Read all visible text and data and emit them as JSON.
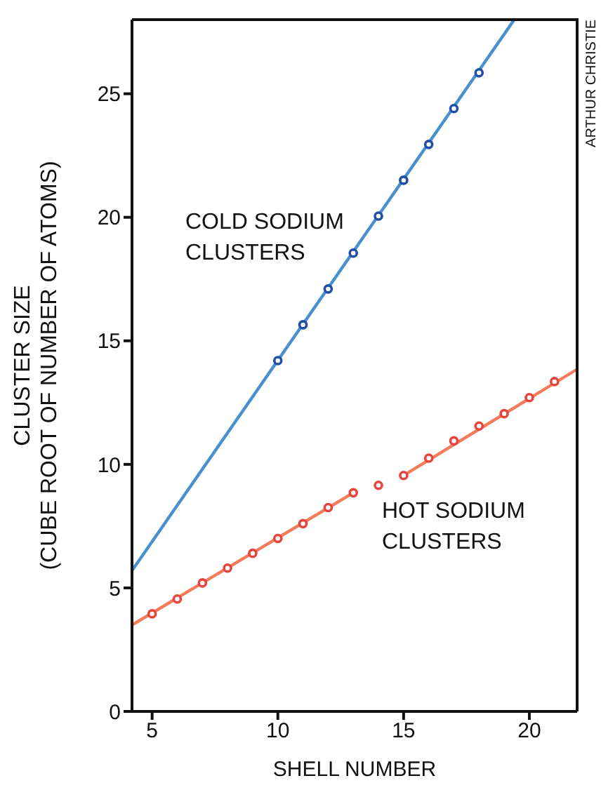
{
  "chart_data": {
    "type": "scatter",
    "xlabel": "SHELL NUMBER",
    "ylabel": "CLUSTER SIZE\n(CUBE ROOT OF NUMBER OF ATOMS)",
    "xlim": [
      4.2,
      21.9
    ],
    "ylim": [
      0,
      28
    ],
    "xticks": [
      5,
      10,
      15,
      20
    ],
    "yticks": [
      0,
      5,
      10,
      15,
      20,
      25
    ],
    "grid": false,
    "legend": false,
    "annotations": [
      "ARTHUR CHRISTIE"
    ],
    "series": [
      {
        "type": "line",
        "color": "#4a90d0",
        "marker": "none",
        "x": [
          4.2,
          19.4
        ],
        "values": [
          5.7,
          28
        ]
      },
      {
        "type": "line",
        "color": "#f47c5c",
        "marker": "none",
        "x": [
          4.2,
          13
        ],
        "values": [
          3.5,
          8.85
        ]
      },
      {
        "type": "line",
        "color": "#f47c5c",
        "marker": "none",
        "x": [
          15,
          21.9
        ],
        "values": [
          9.55,
          13.85
        ]
      },
      {
        "name": "COLD SODIUM\nCLUSTERS",
        "color": "#1f4fa8",
        "marker": "circle",
        "x": [
          10,
          11,
          12,
          13,
          14,
          15,
          16,
          17,
          18
        ],
        "values": [
          14.2,
          15.65,
          17.1,
          18.55,
          20.05,
          21.5,
          22.95,
          24.4,
          25.85
        ]
      },
      {
        "name": "HOT SODIUM\nCLUSTERS",
        "color": "#e8453c",
        "marker": "circle",
        "x": [
          5,
          6,
          7,
          8,
          9,
          10,
          11,
          12,
          13,
          14,
          15,
          16,
          17,
          18,
          19,
          20,
          21
        ],
        "values": [
          3.95,
          4.55,
          5.2,
          5.8,
          6.4,
          7.0,
          7.6,
          8.25,
          8.85,
          9.15,
          9.55,
          10.25,
          10.95,
          11.55,
          12.05,
          12.7,
          13.35
        ]
      }
    ]
  }
}
